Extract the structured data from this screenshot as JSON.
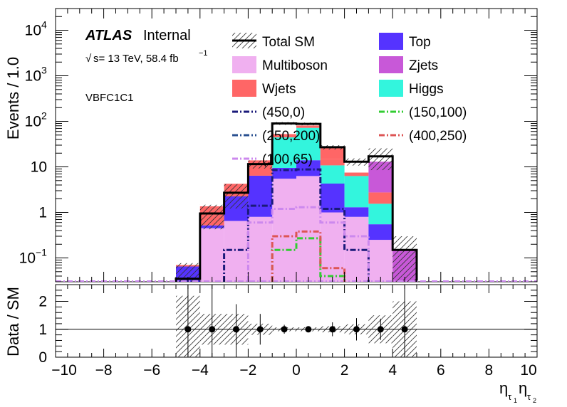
{
  "chart_data": {
    "type": "bar",
    "x_edges": [
      -5,
      -4,
      -3,
      -2,
      -1,
      0,
      1,
      2,
      3,
      4,
      5
    ],
    "xlim": [
      -10,
      10
    ],
    "xticks": [
      "−10",
      "−8",
      "−6",
      "−4",
      "−2",
      "0",
      "2",
      "4",
      "6",
      "8",
      "10"
    ],
    "xlabel": "η",
    "xlabel_sub1": "τ",
    "xlabel_subsub1": "1",
    "xlabel_sub2": "τ",
    "xlabel_subsub2": "2",
    "top_panel": {
      "ylabel": "Events / 1.0",
      "log": true,
      "ylim": [
        0.03,
        30000
      ],
      "yticks": [
        {
          "value": 0.1,
          "base": "10",
          "exp": "−1"
        },
        {
          "value": 1,
          "base": "1",
          "exp": ""
        },
        {
          "value": 10,
          "base": "10",
          "exp": ""
        },
        {
          "value": 100,
          "base": "10",
          "exp": "2"
        },
        {
          "value": 1000,
          "base": "10",
          "exp": "3"
        },
        {
          "value": 10000,
          "base": "10",
          "exp": "4"
        }
      ],
      "stack": [
        {
          "name": "Multiboson",
          "color": "#f0b0f0",
          "values": [
            0,
            0.45,
            0.65,
            0.8,
            5.5,
            6.3,
            1.0,
            0.8,
            0.25,
            0
          ]
        },
        {
          "name": "Zjets",
          "color": "#c858d8",
          "values": [
            0.025,
            0,
            0,
            0,
            0,
            0,
            0,
            0,
            0,
            0.1
          ]
        },
        {
          "name": "Top",
          "color": "#5533ff",
          "values": [
            0.04,
            0.07,
            1.6,
            5.6,
            4.0,
            7.7,
            3.3,
            0.5,
            0.3,
            0
          ]
        },
        {
          "name": "Higgs",
          "color": "#33f5dd",
          "values": [
            0,
            0,
            0,
            0,
            35,
            58,
            6.5,
            5.0,
            1.0,
            0
          ]
        },
        {
          "name": "Wjets",
          "color": "#ff6666",
          "values": [
            0.005,
            0.84,
            2.0,
            7.5,
            8.0,
            9.0,
            4.0,
            1.2,
            1.2,
            0
          ]
        },
        {
          "name": "Zjets",
          "color": "#c858d8",
          "values": [
            0,
            0,
            0,
            0,
            0,
            0,
            0,
            0,
            0,
            0
          ]
        }
      ],
      "top_bins": {
        "Higgs": [
          0,
          0,
          0,
          0,
          0,
          0,
          12,
          0,
          0,
          0
        ]
      },
      "total_sm": [
        0.035,
        0.95,
        2.7,
        11.5,
        90,
        88,
        27,
        13,
        17,
        0.15
      ],
      "zjets_cap": [
        0,
        0,
        0,
        0,
        0,
        0,
        0,
        0,
        13,
        0.15
      ],
      "signals": [
        {
          "name": "(450,0)",
          "color": "#1a1a7a",
          "style": "dashdot",
          "values": [
            0,
            0,
            0.15,
            1.4,
            8.5,
            8.8,
            1.2,
            0.15,
            0,
            0
          ]
        },
        {
          "name": "(150,100)",
          "color": "#33cc33",
          "style": "dashdot",
          "values": [
            0,
            0,
            0,
            0,
            0.15,
            0.27,
            0.04,
            0,
            0,
            0
          ]
        },
        {
          "name": "(250,200)",
          "color": "#2a5090",
          "style": "dashdot",
          "values": [
            0,
            0,
            0,
            0,
            0,
            0,
            0,
            0,
            0,
            0
          ]
        },
        {
          "name": "(400,250)",
          "color": "#dd5555",
          "style": "dashdot",
          "values": [
            0,
            0,
            0,
            0,
            0.3,
            0.38,
            0.06,
            0,
            0,
            0
          ]
        },
        {
          "name": "(100,65)",
          "color": "#cc88ee",
          "style": "dashdot",
          "values": [
            0,
            0,
            0,
            0.6,
            1.2,
            1.3,
            0.6,
            0.3,
            0,
            0
          ]
        }
      ],
      "legend": [
        {
          "name": "Total SM",
          "kind": "totalsm",
          "color": "#000000"
        },
        {
          "name": "Top",
          "kind": "fill",
          "color": "#5533ff"
        },
        {
          "name": "Multiboson",
          "kind": "fill",
          "color": "#f0b0f0"
        },
        {
          "name": "Zjets",
          "kind": "fill",
          "color": "#c858d8"
        },
        {
          "name": "Wjets",
          "kind": "fill",
          "color": "#ff6666"
        },
        {
          "name": "Higgs",
          "kind": "fill",
          "color": "#33f5dd"
        },
        {
          "name": "(450,0)",
          "kind": "line",
          "color": "#1a1a7a"
        },
        {
          "name": "(150,100)",
          "kind": "line",
          "color": "#33cc33"
        },
        {
          "name": "(250,200)",
          "kind": "line",
          "color": "#2a5090"
        },
        {
          "name": "(400,250)",
          "kind": "line",
          "color": "#dd5555"
        },
        {
          "name": "(100,65)",
          "kind": "line",
          "color": "#cc88ee"
        }
      ]
    },
    "bottom_panel": {
      "ylabel": "Data / SM",
      "ylim": [
        0,
        2.6
      ],
      "yticks": [
        0,
        1,
        2
      ],
      "points_x": [
        -4.5,
        -3.5,
        -2.5,
        -1.5,
        -0.5,
        0.5,
        1.5,
        2.5,
        3.5,
        4.5
      ],
      "ratio": [
        1,
        1,
        1,
        1,
        1,
        1,
        1,
        1,
        1,
        1
      ],
      "err": [
        1.9,
        1.9,
        0.9,
        0.55,
        0.16,
        0.11,
        0.25,
        0.4,
        0.38,
        1.9
      ],
      "band": [
        1.2,
        0.55,
        0.55,
        0.2,
        0.07,
        0.07,
        0.11,
        0.18,
        0.5,
        1.0
      ]
    }
  },
  "annotations": {
    "atlas_bold": "ATLAS",
    "atlas_rest": "Internal",
    "energy_sqrt": "√",
    "energy": "s= 13 TeV, 58.4 fb",
    "energy_exp": "−1",
    "region": "VBFC1C1"
  }
}
